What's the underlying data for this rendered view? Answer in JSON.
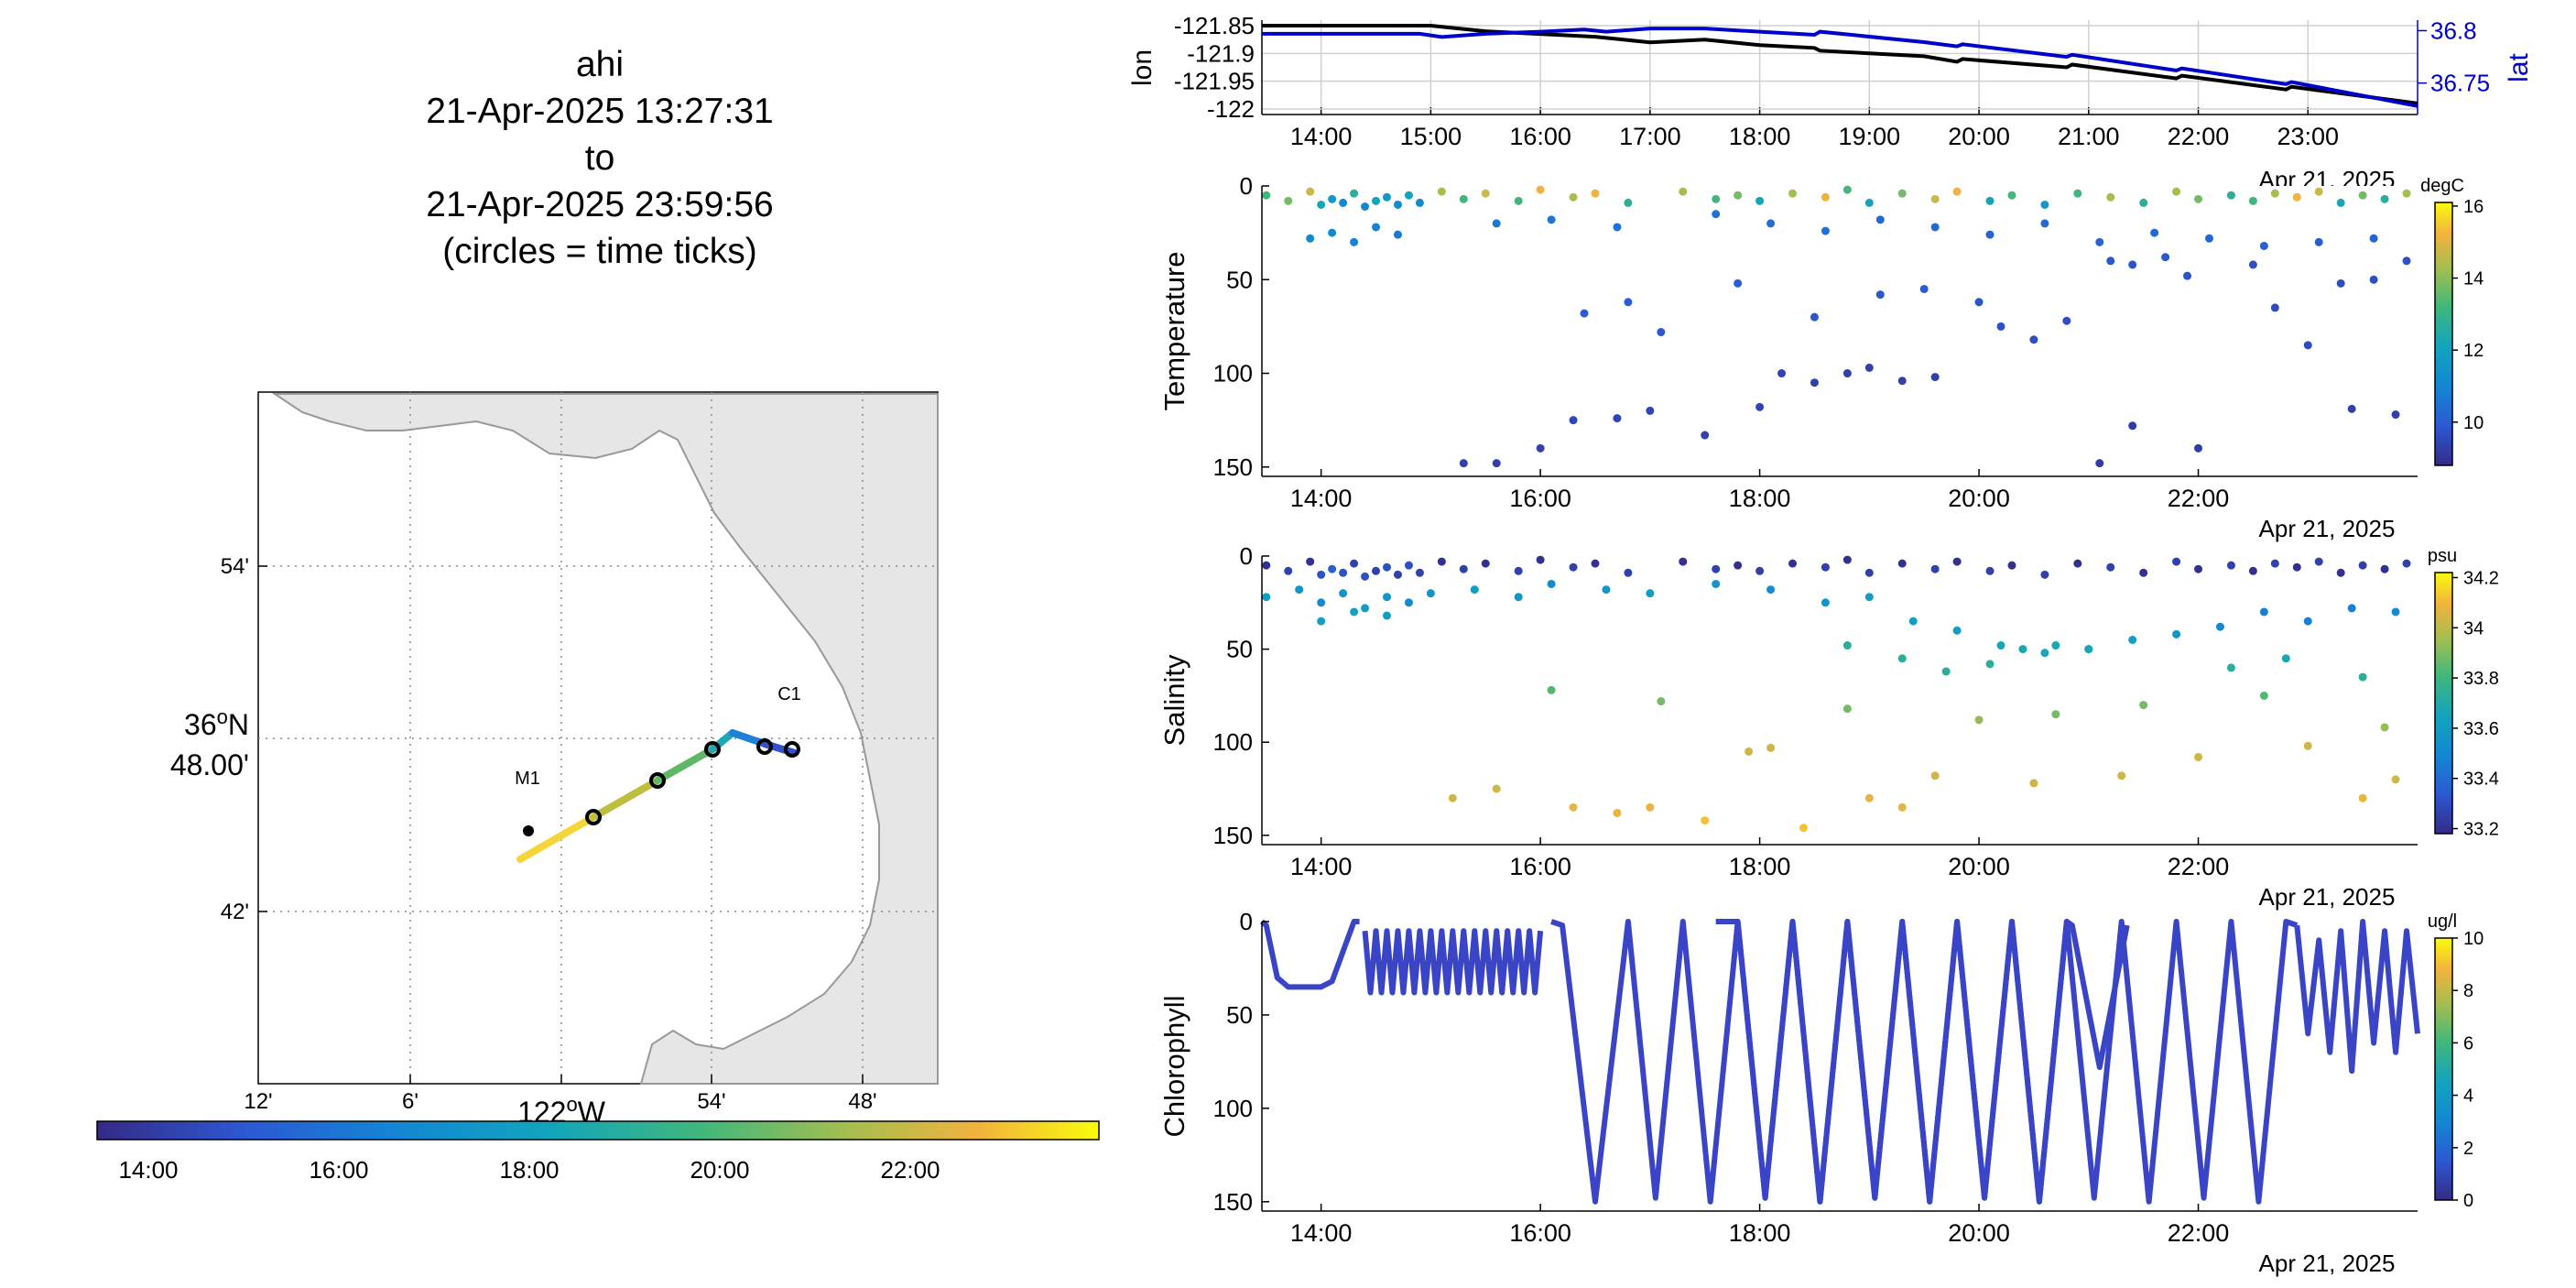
{
  "header": {
    "vehicle": "ahi",
    "start": "21-Apr-2025 13:27:31",
    "to": "to",
    "end": "21-Apr-2025 23:59:56",
    "note": "(circles = time ticks)"
  },
  "colors": {
    "land": "#e6e6e6",
    "coast": "#999999",
    "lon_line": "#000000",
    "lat_line": "#0000cc",
    "grid": "#cccccc"
  },
  "map": {
    "lat_tick_labels": [
      "54'",
      "42'"
    ],
    "lat_center_label": "36°N 48.00'",
    "lon_tick_labels": [
      "12'",
      "6'",
      "54'",
      "48'"
    ],
    "lon_center_label": "122°W",
    "stations": [
      {
        "name": "M1"
      },
      {
        "name": "C1"
      }
    ],
    "time_colorbar_ticks": [
      "14:00",
      "16:00",
      "18:00",
      "20:00",
      "22:00"
    ]
  },
  "chart_data": [
    {
      "type": "line",
      "title": "",
      "xlabel": "",
      "ylabel": "lon",
      "y2label": "lat",
      "x_ticks": [
        "14:00",
        "15:00",
        "16:00",
        "17:00",
        "18:00",
        "19:00",
        "20:00",
        "21:00",
        "22:00",
        "23:00"
      ],
      "x_date_label": "Apr 21, 2025",
      "y_ticks": [
        "-121.85",
        "-121.9",
        "-121.95",
        "-122"
      ],
      "y2_ticks": [
        "36.8",
        "36.75"
      ],
      "xlim_hours": [
        13.46,
        24.0
      ],
      "ylim": [
        -122.01,
        -121.84
      ],
      "y2lim": [
        36.72,
        36.81
      ],
      "grid": true,
      "series": [
        {
          "name": "lon",
          "color": "#000000",
          "x": [
            13.46,
            15.0,
            15.5,
            16.0,
            16.5,
            17.0,
            17.5,
            18.0,
            18.5,
            18.55,
            19.5,
            19.8,
            19.85,
            20.8,
            20.85,
            21.8,
            21.85,
            22.8,
            22.85,
            24.0
          ],
          "y": [
            -121.85,
            -121.85,
            -121.86,
            -121.865,
            -121.87,
            -121.88,
            -121.875,
            -121.885,
            -121.89,
            -121.895,
            -121.905,
            -121.915,
            -121.91,
            -121.925,
            -121.92,
            -121.945,
            -121.94,
            -121.965,
            -121.96,
            -121.99
          ]
        },
        {
          "name": "lat",
          "color": "#0000cc",
          "x": [
            13.46,
            14.9,
            15.1,
            15.5,
            16.0,
            16.4,
            16.6,
            17.0,
            17.5,
            18.0,
            18.5,
            18.55,
            19.5,
            19.8,
            19.85,
            20.8,
            20.85,
            21.8,
            21.85,
            22.8,
            22.85,
            24.0
          ],
          "y": [
            36.797,
            36.797,
            36.794,
            36.797,
            36.799,
            36.801,
            36.799,
            36.802,
            36.802,
            36.799,
            36.796,
            36.799,
            36.789,
            36.785,
            36.787,
            36.775,
            36.777,
            36.762,
            36.764,
            36.749,
            36.751,
            36.728
          ]
        }
      ]
    },
    {
      "type": "scatter",
      "ylabel": "Temperature",
      "x_ticks": [
        "14:00",
        "16:00",
        "18:00",
        "20:00",
        "22:00"
      ],
      "x_date_label": "Apr 21, 2025",
      "y_ticks": [
        "0",
        "50",
        "100",
        "150"
      ],
      "ylim": [
        0,
        155
      ],
      "colorbar": {
        "units": "degC",
        "ticks": [
          "16",
          "14",
          "12",
          "10"
        ],
        "range": [
          8.8,
          16.1
        ]
      },
      "points": {
        "x": [
          13.5,
          13.7,
          13.9,
          14.0,
          14.1,
          14.2,
          14.3,
          14.4,
          14.5,
          14.6,
          14.7,
          14.8,
          14.9,
          15.1,
          15.3,
          15.5,
          15.8,
          16.0,
          16.3,
          16.5,
          16.8,
          17.3,
          17.6,
          17.8,
          18.0,
          18.3,
          18.6,
          18.8,
          19.0,
          19.3,
          19.6,
          19.8,
          20.1,
          20.3,
          20.6,
          20.9,
          21.2,
          21.5,
          21.8,
          22.0,
          22.3,
          22.5,
          22.7,
          22.9,
          23.1,
          23.3,
          23.5,
          23.7,
          23.9,
          13.9,
          14.1,
          14.3,
          14.5,
          14.7,
          15.6,
          16.1,
          16.7,
          17.6,
          18.1,
          18.6,
          19.1,
          19.6,
          20.1,
          20.6,
          21.1,
          21.6,
          22.1,
          22.6,
          23.1,
          23.6,
          16.4,
          16.8,
          17.1,
          17.8,
          18.5,
          19.1,
          19.5,
          20.0,
          20.2,
          20.5,
          20.8,
          21.2,
          21.4,
          21.7,
          21.9,
          22.5,
          22.7,
          23.0,
          23.3,
          23.6,
          23.9,
          15.3,
          15.6,
          16.0,
          16.3,
          16.7,
          17.0,
          17.5,
          18.0,
          18.2,
          18.5,
          18.8,
          19.0,
          19.3,
          19.6,
          21.1,
          21.4,
          22.0,
          23.4,
          23.8
        ],
        "y": [
          5,
          8,
          3,
          10,
          7,
          9,
          4,
          11,
          8,
          6,
          10,
          5,
          9,
          3,
          7,
          4,
          8,
          2,
          6,
          4,
          9,
          3,
          7,
          5,
          8,
          4,
          6,
          2,
          9,
          4,
          7,
          3,
          8,
          5,
          10,
          4,
          6,
          9,
          3,
          7,
          5,
          8,
          4,
          6,
          3,
          9,
          5,
          7,
          4,
          28,
          25,
          30,
          22,
          26,
          20,
          18,
          22,
          15,
          20,
          24,
          18,
          22,
          26,
          20,
          30,
          25,
          28,
          32,
          30,
          28,
          68,
          62,
          78,
          52,
          70,
          58,
          55,
          62,
          75,
          82,
          72,
          40,
          42,
          38,
          48,
          42,
          65,
          85,
          52,
          50,
          40,
          148,
          148,
          140,
          125,
          124,
          120,
          133,
          118,
          100,
          105,
          100,
          97,
          104,
          102,
          148,
          128,
          140,
          119,
          122
        ],
        "c": [
          13,
          13.5,
          14.5,
          12,
          11.5,
          11,
          12.5,
          11,
          12,
          11.5,
          11,
          12,
          11,
          14,
          13,
          14.5,
          13,
          15,
          14,
          15,
          12.5,
          14,
          13,
          13.5,
          12,
          14,
          15,
          13,
          12,
          13.5,
          14.5,
          15,
          12,
          13,
          11.5,
          13,
          14,
          12.5,
          14,
          13.5,
          12.5,
          13,
          14,
          15,
          14.5,
          12,
          13.5,
          12.5,
          14,
          11,
          11,
          10.8,
          10.8,
          10.6,
          10.5,
          10.5,
          10.4,
          10.4,
          10.3,
          10.4,
          10.2,
          10.2,
          10.1,
          10.2,
          10.1,
          10.2,
          10.1,
          10.0,
          10.0,
          10.1,
          9.9,
          9.9,
          9.8,
          9.9,
          9.8,
          9.8,
          9.9,
          9.7,
          9.7,
          9.6,
          9.6,
          9.8,
          9.7,
          9.8,
          9.7,
          9.6,
          9.5,
          9.5,
          9.6,
          9.6,
          9.6,
          9.3,
          9.3,
          9.3,
          9.4,
          9.4,
          9.4,
          9.3,
          9.4,
          9.4,
          9.3,
          9.3,
          9.3,
          9.3,
          9.3,
          9.2,
          9.2,
          9.2,
          9.3,
          9.3
        ]
      }
    },
    {
      "type": "scatter",
      "ylabel": "Salinity",
      "x_ticks": [
        "14:00",
        "16:00",
        "18:00",
        "20:00",
        "22:00"
      ],
      "x_date_label": "Apr 21, 2025",
      "y_ticks": [
        "0",
        "50",
        "100",
        "150"
      ],
      "ylim": [
        0,
        155
      ],
      "colorbar": {
        "units": "psu",
        "ticks": [
          "34.2",
          "34",
          "33.8",
          "33.6",
          "33.4",
          "33.2"
        ],
        "range": [
          33.18,
          34.22
        ]
      },
      "points": {
        "x": [
          13.5,
          13.7,
          13.9,
          14.0,
          14.1,
          14.2,
          14.3,
          14.4,
          14.5,
          14.6,
          14.7,
          14.8,
          14.9,
          15.1,
          15.3,
          15.5,
          15.8,
          16.0,
          16.3,
          16.5,
          16.8,
          17.3,
          17.6,
          17.8,
          18.0,
          18.3,
          18.6,
          18.8,
          19.0,
          19.3,
          19.6,
          19.8,
          20.1,
          20.3,
          20.6,
          20.9,
          21.2,
          21.5,
          21.8,
          22.0,
          22.3,
          22.5,
          22.7,
          22.9,
          23.1,
          23.3,
          23.5,
          23.7,
          23.9,
          13.5,
          13.8,
          14.0,
          14.2,
          14.4,
          14.6,
          14.8,
          15.0,
          15.4,
          15.8,
          16.1,
          16.6,
          17.0,
          17.6,
          18.1,
          18.6,
          19.0,
          19.4,
          19.8,
          20.2,
          20.6,
          21.0,
          21.4,
          21.8,
          22.2,
          22.6,
          23.0,
          23.4,
          23.8,
          14.0,
          14.3,
          14.6,
          18.8,
          19.3,
          19.7,
          20.1,
          20.4,
          20.7,
          21.0,
          22.3,
          22.8,
          23.5,
          16.1,
          17.1,
          18.8,
          20.0,
          20.7,
          21.5,
          22.6,
          23.7,
          15.2,
          15.6,
          16.3,
          16.7,
          17.0,
          17.5,
          17.9,
          18.1,
          18.4,
          19.0,
          19.3,
          19.6,
          20.5,
          21.3,
          22.0,
          23.0,
          23.5,
          23.8
        ],
        "y": [
          5,
          8,
          3,
          10,
          7,
          9,
          4,
          11,
          8,
          6,
          10,
          5,
          9,
          3,
          7,
          4,
          8,
          2,
          6,
          4,
          9,
          3,
          7,
          5,
          8,
          4,
          6,
          2,
          9,
          4,
          7,
          3,
          8,
          5,
          10,
          4,
          6,
          9,
          3,
          7,
          5,
          8,
          4,
          6,
          3,
          9,
          5,
          7,
          4,
          22,
          18,
          25,
          20,
          28,
          22,
          25,
          20,
          18,
          22,
          15,
          18,
          20,
          15,
          18,
          25,
          22,
          35,
          40,
          48,
          52,
          50,
          45,
          42,
          38,
          30,
          35,
          28,
          30,
          35,
          30,
          32,
          48,
          55,
          62,
          58,
          50,
          48,
          50,
          60,
          55,
          65,
          72,
          78,
          82,
          88,
          85,
          80,
          75,
          92,
          130,
          125,
          135,
          138,
          135,
          142,
          105,
          103,
          146,
          130,
          135,
          118,
          122,
          118,
          108,
          102,
          130,
          120
        ],
        "c": [
          33.2,
          33.25,
          33.2,
          33.3,
          33.35,
          33.3,
          33.25,
          33.3,
          33.25,
          33.3,
          33.25,
          33.3,
          33.25,
          33.2,
          33.25,
          33.2,
          33.25,
          33.2,
          33.25,
          33.2,
          33.25,
          33.2,
          33.25,
          33.2,
          33.25,
          33.2,
          33.25,
          33.2,
          33.25,
          33.2,
          33.25,
          33.2,
          33.25,
          33.2,
          33.25,
          33.2,
          33.25,
          33.2,
          33.25,
          33.2,
          33.25,
          33.2,
          33.25,
          33.2,
          33.25,
          33.2,
          33.25,
          33.2,
          33.25,
          33.6,
          33.55,
          33.5,
          33.55,
          33.6,
          33.55,
          33.5,
          33.55,
          33.6,
          33.55,
          33.5,
          33.55,
          33.6,
          33.55,
          33.5,
          33.55,
          33.6,
          33.6,
          33.6,
          33.65,
          33.65,
          33.6,
          33.6,
          33.55,
          33.5,
          33.45,
          33.45,
          33.45,
          33.5,
          33.6,
          33.6,
          33.6,
          33.7,
          33.7,
          33.7,
          33.7,
          33.65,
          33.65,
          33.65,
          33.7,
          33.65,
          33.7,
          33.8,
          33.85,
          33.85,
          33.9,
          33.85,
          33.85,
          33.8,
          33.9,
          34.0,
          34.0,
          34.05,
          34.05,
          34.05,
          34.1,
          34.0,
          34.0,
          34.1,
          34.05,
          34.05,
          34.0,
          34.0,
          34.0,
          34.0,
          34.0,
          34.05,
          34.0
        ]
      }
    },
    {
      "type": "line",
      "ylabel": "Chlorophyll",
      "x_ticks": [
        "14:00",
        "16:00",
        "18:00",
        "20:00",
        "22:00"
      ],
      "x_date_label": "Apr 21, 2025",
      "y_ticks": [
        "0",
        "50",
        "100",
        "150"
      ],
      "ylim": [
        0,
        155
      ],
      "colorbar": {
        "units": "ug/l",
        "ticks": [
          "10",
          "8",
          "6",
          "4",
          "2",
          "0"
        ],
        "range": [
          0,
          10
        ]
      },
      "segments": [
        {
          "x": [
            13.46,
            13.5,
            13.6,
            13.7,
            14.0,
            14.1,
            14.3,
            14.35
          ],
          "y": [
            0,
            2,
            30,
            35,
            35,
            32,
            0,
            0
          ]
        },
        {
          "x": [
            14.4,
            14.45,
            14.5,
            14.55,
            14.6,
            14.65,
            14.7,
            14.75,
            14.8,
            14.85,
            14.9,
            14.95,
            15.0,
            15.05,
            15.1,
            15.15,
            15.2,
            15.25,
            15.3,
            15.35,
            15.4,
            15.45,
            15.5,
            15.55,
            15.6,
            15.65,
            15.7,
            15.75,
            15.8,
            15.85,
            15.9,
            15.95,
            16.0
          ],
          "y": [
            5,
            38,
            5,
            38,
            5,
            38,
            5,
            38,
            5,
            38,
            5,
            38,
            5,
            38,
            5,
            38,
            5,
            38,
            5,
            38,
            5,
            38,
            5,
            38,
            5,
            38,
            5,
            38,
            5,
            38,
            5,
            38,
            5
          ]
        },
        {
          "x": [
            16.1,
            16.2,
            16.5,
            16.8,
            17.05,
            17.3,
            17.55,
            17.8,
            18.05,
            18.3,
            18.55,
            18.8,
            19.05,
            19.3,
            19.55,
            19.8,
            20.05,
            20.3,
            20.55,
            20.8,
            20.85,
            21.1,
            21.35
          ],
          "y": [
            0,
            2,
            150,
            0,
            148,
            0,
            150,
            0,
            148,
            0,
            150,
            0,
            148,
            0,
            150,
            0,
            148,
            0,
            150,
            0,
            2,
            78,
            2
          ]
        },
        {
          "x": [
            17.6,
            17.8,
            18.05,
            18.3,
            18.55,
            18.8,
            19.05,
            19.3,
            19.55,
            19.8,
            20.05,
            20.3,
            20.55,
            20.8,
            21.05,
            21.3,
            21.55,
            21.8,
            22.05,
            22.3,
            22.55,
            22.8,
            22.9
          ],
          "y": [
            0,
            0,
            148,
            0,
            150,
            0,
            148,
            0,
            150,
            0,
            148,
            0,
            150,
            0,
            148,
            0,
            150,
            0,
            148,
            0,
            150,
            0,
            2
          ]
        },
        {
          "x": [
            22.9,
            23.0,
            23.1,
            23.2,
            23.3,
            23.4,
            23.5,
            23.6,
            23.7,
            23.8,
            23.9,
            24.0
          ],
          "y": [
            2,
            60,
            10,
            70,
            5,
            80,
            0,
            65,
            5,
            70,
            5,
            60
          ]
        }
      ]
    }
  ]
}
